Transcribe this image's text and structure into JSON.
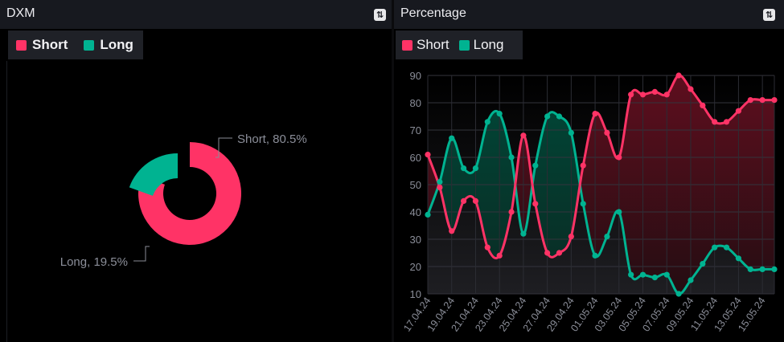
{
  "left_panel": {
    "title": "DXM",
    "settings_icon": "swap-vertical-icon",
    "legend": [
      {
        "label": "Short",
        "color": "#ff3366"
      },
      {
        "label": "Long",
        "color": "#00b391"
      }
    ]
  },
  "right_panel": {
    "title": "Percentage",
    "settings_icon": "swap-vertical-icon",
    "legend": [
      {
        "label": "Short",
        "color": "#ff3366"
      },
      {
        "label": "Long",
        "color": "#00b391"
      }
    ]
  },
  "chart_data": [
    {
      "type": "pie",
      "title": "DXM",
      "labels": [
        "Short",
        "Long"
      ],
      "values": [
        80.5,
        19.5
      ],
      "data_labels": [
        "Short, 80.5%",
        "Long, 19.5%"
      ],
      "colors": [
        "#ff3366",
        "#00b391"
      ],
      "legend_position": "top-left"
    },
    {
      "type": "area",
      "title": "Percentage",
      "x": [
        "17.04.24",
        "18.04.24",
        "19.04.24",
        "20.04.24",
        "21.04.24",
        "22.04.24",
        "23.04.24",
        "24.04.24",
        "25.04.24",
        "26.04.24",
        "27.04.24",
        "28.04.24",
        "29.04.24",
        "30.04.24",
        "01.05.24",
        "02.05.24",
        "03.05.24",
        "04.05.24",
        "05.05.24",
        "06.05.24",
        "07.05.24",
        "08.05.24",
        "09.05.24",
        "10.05.24",
        "11.05.24",
        "12.05.24",
        "13.05.24",
        "14.05.24",
        "15.05.24",
        "16.05.24"
      ],
      "x_tick_labels": [
        "17.04.24",
        "19.04.24",
        "21.04.24",
        "23.04.24",
        "25.04.24",
        "27.04.24",
        "29.04.24",
        "01.05.24",
        "03.05.24",
        "05.05.24",
        "07.05.24",
        "09.05.24",
        "11.05.24",
        "13.05.24",
        "15.05.24"
      ],
      "series": [
        {
          "name": "Short",
          "color": "#ff3366",
          "values": [
            61,
            49,
            33,
            44,
            44,
            27,
            24,
            40,
            68,
            43,
            25,
            25,
            31,
            57,
            76,
            69,
            60,
            83,
            83,
            84,
            83,
            90,
            85,
            79,
            73,
            73,
            77,
            81,
            81,
            81
          ]
        },
        {
          "name": "Long",
          "color": "#00b391",
          "values": [
            39,
            51,
            67,
            56,
            56,
            73,
            76,
            60,
            32,
            57,
            75,
            75,
            69,
            43,
            24,
            31,
            40,
            17,
            17,
            16,
            17,
            10,
            15,
            21,
            27,
            27,
            23,
            19,
            19,
            19
          ]
        }
      ],
      "ylim": [
        10,
        90
      ],
      "y_ticks": [
        10,
        20,
        30,
        40,
        50,
        60,
        70,
        80,
        90
      ],
      "grid": true,
      "legend_position": "top-left"
    }
  ]
}
